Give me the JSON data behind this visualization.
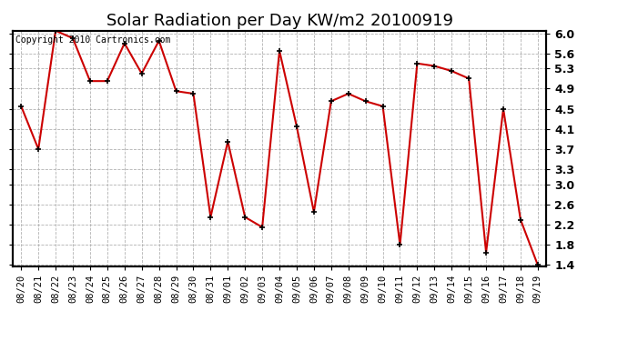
{
  "title": "Solar Radiation per Day KW/m2 20100919",
  "copyright_text": "Copyright 2010 Cartronics.com",
  "dates": [
    "08/20",
    "08/21",
    "08/22",
    "08/23",
    "08/24",
    "08/25",
    "08/26",
    "08/27",
    "08/28",
    "08/29",
    "08/30",
    "08/31",
    "09/01",
    "09/02",
    "09/03",
    "09/04",
    "09/05",
    "09/06",
    "09/07",
    "09/08",
    "09/09",
    "09/10",
    "09/11",
    "09/12",
    "09/13",
    "09/14",
    "09/15",
    "09/16",
    "09/17",
    "09/18",
    "09/19"
  ],
  "values": [
    4.55,
    3.7,
    6.05,
    5.9,
    5.05,
    5.05,
    5.8,
    5.2,
    5.85,
    4.85,
    4.8,
    2.35,
    3.85,
    2.35,
    2.15,
    5.65,
    4.15,
    2.45,
    4.65,
    4.8,
    4.65,
    4.55,
    1.8,
    5.4,
    5.35,
    5.25,
    5.1,
    1.65,
    4.5,
    2.3,
    1.4
  ],
  "line_color": "#cc0000",
  "marker_color": "#000000",
  "bg_color": "#ffffff",
  "grid_color": "#aaaaaa",
  "ylim_min": 1.4,
  "ylim_max": 6.0,
  "yticks": [
    1.4,
    1.8,
    2.2,
    2.6,
    3.0,
    3.3,
    3.7,
    4.1,
    4.5,
    4.9,
    5.3,
    5.6,
    6.0
  ],
  "title_fontsize": 13,
  "copyright_fontsize": 7.0
}
